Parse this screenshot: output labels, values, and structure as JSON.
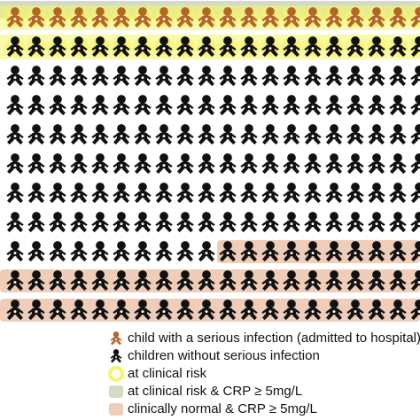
{
  "colors": {
    "child": "#111111",
    "serious_infection_child": "#b4652c",
    "clinical_risk_halo": "#f5f56a",
    "clinical_risk_and_crp": "#d3dbc5",
    "normal_and_crp": "#efcdb8"
  },
  "icon_grid": {
    "icon_name": "baby-icon",
    "rows": 11,
    "columns": 20,
    "serious_infection_highlight": "top row",
    "clinical_risk_rows": [
      1,
      2
    ],
    "clinical_risk_and_crp_rows": [
      1
    ],
    "clinically_normal_and_crp_rows": [
      9,
      10,
      11
    ],
    "clinically_normal_and_crp_partial_row": {
      "row": 9,
      "from_column": 11
    }
  },
  "legend": {
    "items": [
      {
        "label": "child with a serious infection (admitted to hospital)",
        "symbol": "baby-icon-brown"
      },
      {
        "label": "children without serious infection",
        "symbol": "baby-icon-black"
      },
      {
        "label": "at clinical risk",
        "symbol": "yellow-halo"
      },
      {
        "label": "at clinical risk & CRP ≥ 5mg/L",
        "symbol": "green-swatch"
      },
      {
        "label": "clinically normal & CRP ≥ 5mg/L",
        "symbol": "peach-swatch"
      }
    ]
  }
}
